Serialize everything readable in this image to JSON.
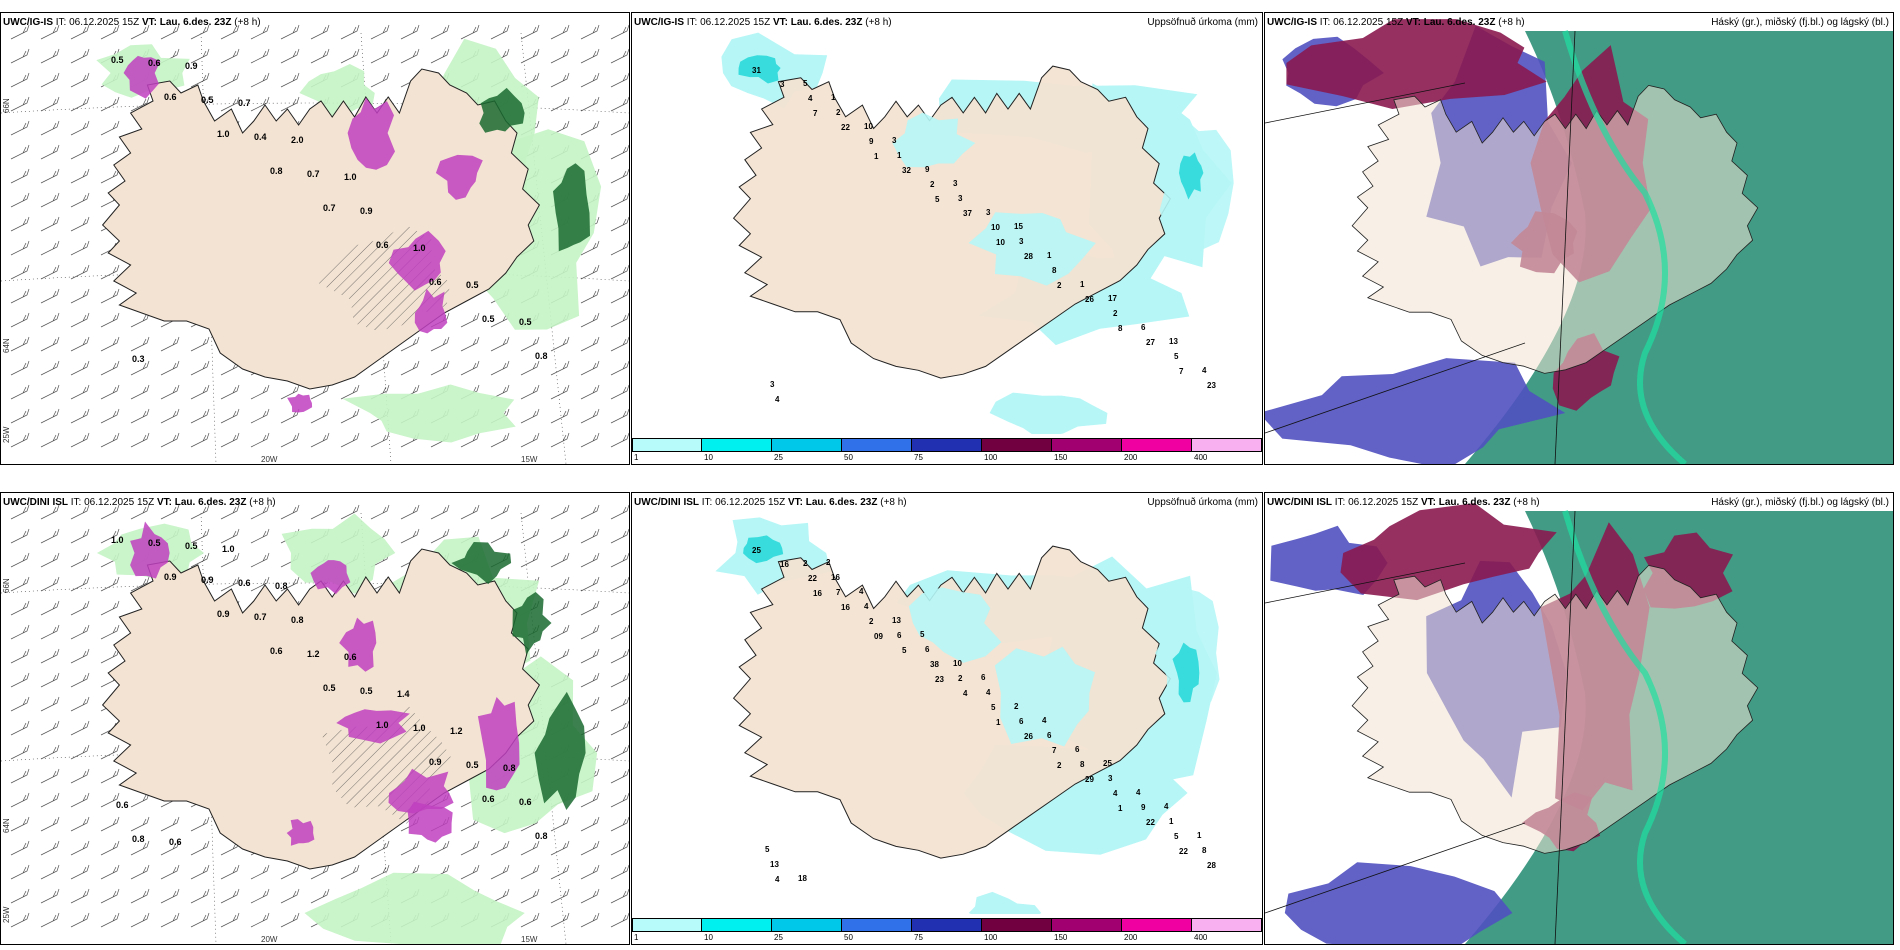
{
  "panels": [
    {
      "model": "UWC/IG-IS",
      "it_label": "IT:",
      "it": "06.12.2025 15Z",
      "vt_label": "VT:",
      "vt": "Lau. 6.des. 23Z",
      "lead": "(+8 h)",
      "right": ""
    },
    {
      "model": "UWC/IG-IS",
      "it_label": "IT:",
      "it": "06.12.2025 15Z",
      "vt_label": "VT:",
      "vt": "Lau. 6.des. 23Z",
      "lead": "(+8 h)",
      "right": "Uppsöfnuð úrkoma (mm)"
    },
    {
      "model": "UWC/IG-IS",
      "it_label": "IT:",
      "it": "06.12.2025 15Z",
      "vt_label": "VT:",
      "vt": "Lau. 6.des. 23Z",
      "lead": "(+8 h)",
      "right": "Háský (gr.), miðský (fj.bl.) og lágský (bl.)"
    },
    {
      "model": "UWC/DINI ISL",
      "it_label": "IT:",
      "it": "06.12.2025 15Z",
      "vt_label": "VT:",
      "vt": "Lau. 6.des. 23Z",
      "lead": "(+8 h)",
      "right": ""
    },
    {
      "model": "UWC/DINI ISL",
      "it_label": "IT:",
      "it": "06.12.2025 15Z",
      "vt_label": "VT:",
      "vt": "Lau. 6.des. 23Z",
      "lead": "(+8 h)",
      "right": "Uppsöfnuð úrkoma (mm)"
    },
    {
      "model": "UWC/DINI ISL",
      "it_label": "IT:",
      "it": "06.12.2025 15Z",
      "vt_label": "VT:",
      "vt": "Lau. 6.des. 23Z",
      "lead": "(+8 h)",
      "right": "Háský (gr.), miðský (fj.bl.) og lágský (bl.)"
    }
  ],
  "axes": {
    "lon_20": "20W",
    "lon_15": "15W",
    "lat_66": "66N",
    "lat_64": "64N",
    "lon_25": "25W"
  },
  "legend": {
    "ticks": [
      "1",
      "10",
      "25",
      "50",
      "75",
      "100",
      "150",
      "200",
      "400"
    ],
    "colors": [
      "#b8fbfb",
      "#00f0f0",
      "#00c8e8",
      "#3070e8",
      "#2030b0",
      "#700040",
      "#a00070",
      "#f000a0",
      "#f8b0f0"
    ]
  },
  "colors": {
    "land": "#f3e3d2",
    "precip_light": "#b6f6f6",
    "precip_mid": "#38dcdc",
    "green_light": "#c4f3c4",
    "green_dark": "#1a6a30",
    "magenta": "#c040c0",
    "cloud_high": "#8a1a50",
    "cloud_mid": "#5050c0",
    "cloud_low": "#208a70"
  },
  "precip_labels_top": [
    "31",
    "7",
    "1",
    "5",
    "10",
    "2",
    "8",
    "7",
    "3",
    "22",
    "32",
    "37",
    "28",
    "26",
    "27",
    "23",
    "4",
    "9",
    "2",
    "10",
    "8",
    "2",
    "5",
    "4",
    "2",
    "1",
    "3",
    "3",
    "1",
    "6",
    "4",
    "5",
    "10",
    "9",
    "3",
    "1",
    "17",
    "13",
    "3",
    "1",
    "3",
    "3",
    "15"
  ],
  "precip_labels_bottom": [
    "25",
    "16",
    "09",
    "23",
    "1",
    "2",
    "1",
    "22",
    "16",
    "16",
    "5",
    "4",
    "26",
    "29",
    "22",
    "28",
    "22",
    "2",
    "38",
    "5",
    "7",
    "4",
    "5",
    "4",
    "7",
    "6",
    "2",
    "6",
    "8",
    "9",
    "8",
    "2",
    "4",
    "6",
    "4",
    "6",
    "3",
    "1",
    "13",
    "16",
    "13",
    "10",
    "2",
    "6",
    "4",
    "1",
    "18",
    "4",
    "5",
    "6",
    "4",
    "25",
    "4",
    "5",
    "2"
  ],
  "snow_labels_top": [
    "0.5",
    "0.6",
    "1.0",
    "0.8",
    "0.7",
    "0.6",
    "0.6",
    "0.5",
    "0.8",
    "0.6",
    "0.5",
    "0.4",
    "0.7",
    "0.9",
    "1.0",
    "0.5",
    "0.5",
    "0.3",
    "0.9",
    "0.7",
    "2.0",
    "1.0"
  ],
  "snow_labels_bottom": [
    "1.0",
    "0.9",
    "0.9",
    "0.6",
    "0.5",
    "1.0",
    "0.9",
    "0.6",
    "0.8",
    "0.5",
    "0.9",
    "0.7",
    "1.2",
    "0.5",
    "1.0",
    "0.5",
    "0.6",
    "0.8",
    "0.5",
    "0.6",
    "0.8",
    "0.6",
    "1.4",
    "1.2",
    "0.8",
    "0.6",
    "0.6",
    "1.0",
    "0.8"
  ]
}
